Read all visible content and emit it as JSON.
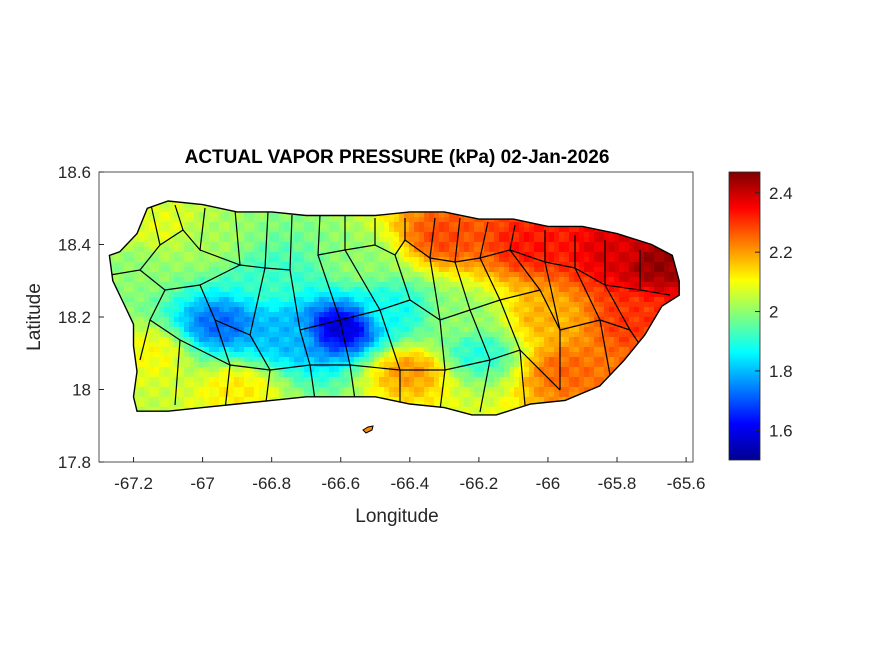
{
  "title": "ACTUAL VAPOR PRESSURE (kPa) 02-Jan-2026",
  "chart_data": {
    "type": "heatmap",
    "title": "ACTUAL VAPOR PRESSURE (kPa) 02-Jan-2026",
    "xlabel": "Longitude",
    "ylabel": "Latitude",
    "xlim": [
      -67.3,
      -65.58
    ],
    "ylim": [
      17.8,
      18.6
    ],
    "xticks": [
      {
        "value": -67.2,
        "label": "-67.2"
      },
      {
        "value": -67.0,
        "label": "-67"
      },
      {
        "value": -66.8,
        "label": "-66.8"
      },
      {
        "value": -66.6,
        "label": "-66.6"
      },
      {
        "value": -66.4,
        "label": "-66.4"
      },
      {
        "value": -66.2,
        "label": "-66.2"
      },
      {
        "value": -66.0,
        "label": "-66"
      },
      {
        "value": -65.8,
        "label": "-65.8"
      },
      {
        "value": -65.6,
        "label": "-65.6"
      }
    ],
    "yticks": [
      {
        "value": 17.8,
        "label": "17.8"
      },
      {
        "value": 18.0,
        "label": "18"
      },
      {
        "value": 18.2,
        "label": "18.2"
      },
      {
        "value": 18.4,
        "label": "18.4"
      },
      {
        "value": 18.6,
        "label": "18.6"
      }
    ],
    "colorbar": {
      "colormap": "jet",
      "range": [
        1.5,
        2.47
      ],
      "ticks": [
        {
          "value": 1.6,
          "label": "1.6"
        },
        {
          "value": 1.8,
          "label": "1.8"
        },
        {
          "value": 2.0,
          "label": "2"
        },
        {
          "value": 2.2,
          "label": "2.2"
        },
        {
          "value": 2.4,
          "label": "2.4"
        }
      ]
    },
    "island_outline": [
      [
        -67.27,
        18.37
      ],
      [
        -67.24,
        18.38
      ],
      [
        -67.19,
        18.43
      ],
      [
        -67.16,
        18.5
      ],
      [
        -67.1,
        18.52
      ],
      [
        -67.0,
        18.51
      ],
      [
        -66.9,
        18.49
      ],
      [
        -66.8,
        18.49
      ],
      [
        -66.7,
        18.48
      ],
      [
        -66.6,
        18.48
      ],
      [
        -66.5,
        18.48
      ],
      [
        -66.4,
        18.49
      ],
      [
        -66.3,
        18.49
      ],
      [
        -66.2,
        18.47
      ],
      [
        -66.1,
        18.47
      ],
      [
        -66.0,
        18.45
      ],
      [
        -65.9,
        18.45
      ],
      [
        -65.8,
        18.43
      ],
      [
        -65.7,
        18.4
      ],
      [
        -65.64,
        18.37
      ],
      [
        -65.62,
        18.3
      ],
      [
        -65.62,
        18.26
      ],
      [
        -65.67,
        18.23
      ],
      [
        -65.72,
        18.15
      ],
      [
        -65.78,
        18.08
      ],
      [
        -65.85,
        18.01
      ],
      [
        -65.95,
        17.97
      ],
      [
        -66.05,
        17.96
      ],
      [
        -66.15,
        17.93
      ],
      [
        -66.22,
        17.93
      ],
      [
        -66.3,
        17.95
      ],
      [
        -66.4,
        17.96
      ],
      [
        -66.5,
        17.98
      ],
      [
        -66.6,
        17.98
      ],
      [
        -66.7,
        17.98
      ],
      [
        -66.8,
        17.97
      ],
      [
        -66.9,
        17.96
      ],
      [
        -67.0,
        17.95
      ],
      [
        -67.1,
        17.94
      ],
      [
        -67.19,
        17.94
      ],
      [
        -67.2,
        17.98
      ],
      [
        -67.19,
        18.05
      ],
      [
        -67.2,
        18.12
      ],
      [
        -67.2,
        18.18
      ],
      [
        -67.23,
        18.24
      ],
      [
        -67.26,
        18.3
      ]
    ],
    "value_field_anchors": [
      {
        "lon": -67.2,
        "lat": 18.33,
        "value": 2.0
      },
      {
        "lon": -67.12,
        "lat": 18.45,
        "value": 2.08
      },
      {
        "lon": -67.15,
        "lat": 18.1,
        "value": 2.1
      },
      {
        "lon": -67.0,
        "lat": 18.4,
        "value": 2.02
      },
      {
        "lon": -66.95,
        "lat": 18.18,
        "value": 1.72
      },
      {
        "lon": -66.9,
        "lat": 18.0,
        "value": 2.12
      },
      {
        "lon": -66.8,
        "lat": 18.3,
        "value": 1.92
      },
      {
        "lon": -66.75,
        "lat": 18.15,
        "value": 1.8
      },
      {
        "lon": -66.6,
        "lat": 18.17,
        "value": 1.58
      },
      {
        "lon": -66.55,
        "lat": 18.35,
        "value": 2.0
      },
      {
        "lon": -66.45,
        "lat": 18.22,
        "value": 1.88
      },
      {
        "lon": -66.4,
        "lat": 18.05,
        "value": 2.2
      },
      {
        "lon": -66.3,
        "lat": 18.42,
        "value": 2.28
      },
      {
        "lon": -66.25,
        "lat": 18.2,
        "value": 2.0
      },
      {
        "lon": -66.2,
        "lat": 18.1,
        "value": 1.9
      },
      {
        "lon": -66.05,
        "lat": 18.4,
        "value": 2.33
      },
      {
        "lon": -66.0,
        "lat": 18.2,
        "value": 2.18
      },
      {
        "lon": -65.95,
        "lat": 18.05,
        "value": 2.25
      },
      {
        "lon": -65.8,
        "lat": 18.38,
        "value": 2.38
      },
      {
        "lon": -65.75,
        "lat": 18.2,
        "value": 2.3
      },
      {
        "lon": -65.68,
        "lat": 18.35,
        "value": 2.45
      }
    ]
  }
}
